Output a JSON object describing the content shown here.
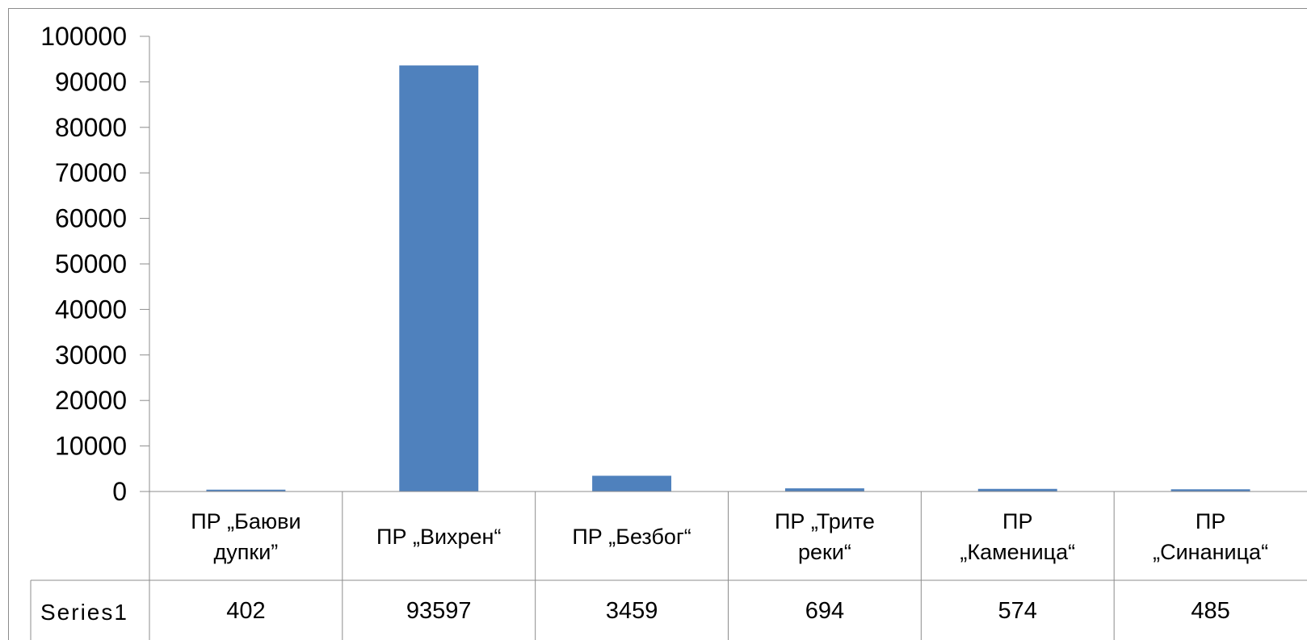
{
  "chart_data": {
    "type": "bar",
    "title": "",
    "xlabel": "",
    "ylabel": "",
    "categories": [
      [
        "ПР  „Баюви",
        "дупки”"
      ],
      [
        "ПР „Вихрен“"
      ],
      [
        "ПР „Безбог“"
      ],
      [
        "ПР „Трите",
        "реки“"
      ],
      [
        "ПР",
        "„Каменица“"
      ],
      [
        "ПР",
        "„Синаница“"
      ]
    ],
    "series": [
      {
        "name": "Series1",
        "values": [
          402,
          93597,
          3459,
          694,
          574,
          485
        ],
        "value_labels": [
          "402",
          "93597",
          "3459",
          "694",
          "574",
          "485"
        ]
      }
    ],
    "ylim": [
      0,
      100000
    ],
    "yticks": [
      0,
      10000,
      20000,
      30000,
      40000,
      50000,
      60000,
      70000,
      80000,
      90000,
      100000
    ],
    "ytick_labels": [
      "0",
      "10000",
      "20000",
      "30000",
      "40000",
      "50000",
      "60000",
      "70000",
      "80000",
      "90000",
      "100000"
    ],
    "grid": false,
    "data_table": true,
    "bar_color": "#4F81BD",
    "line_color": "#8C8C8C"
  }
}
